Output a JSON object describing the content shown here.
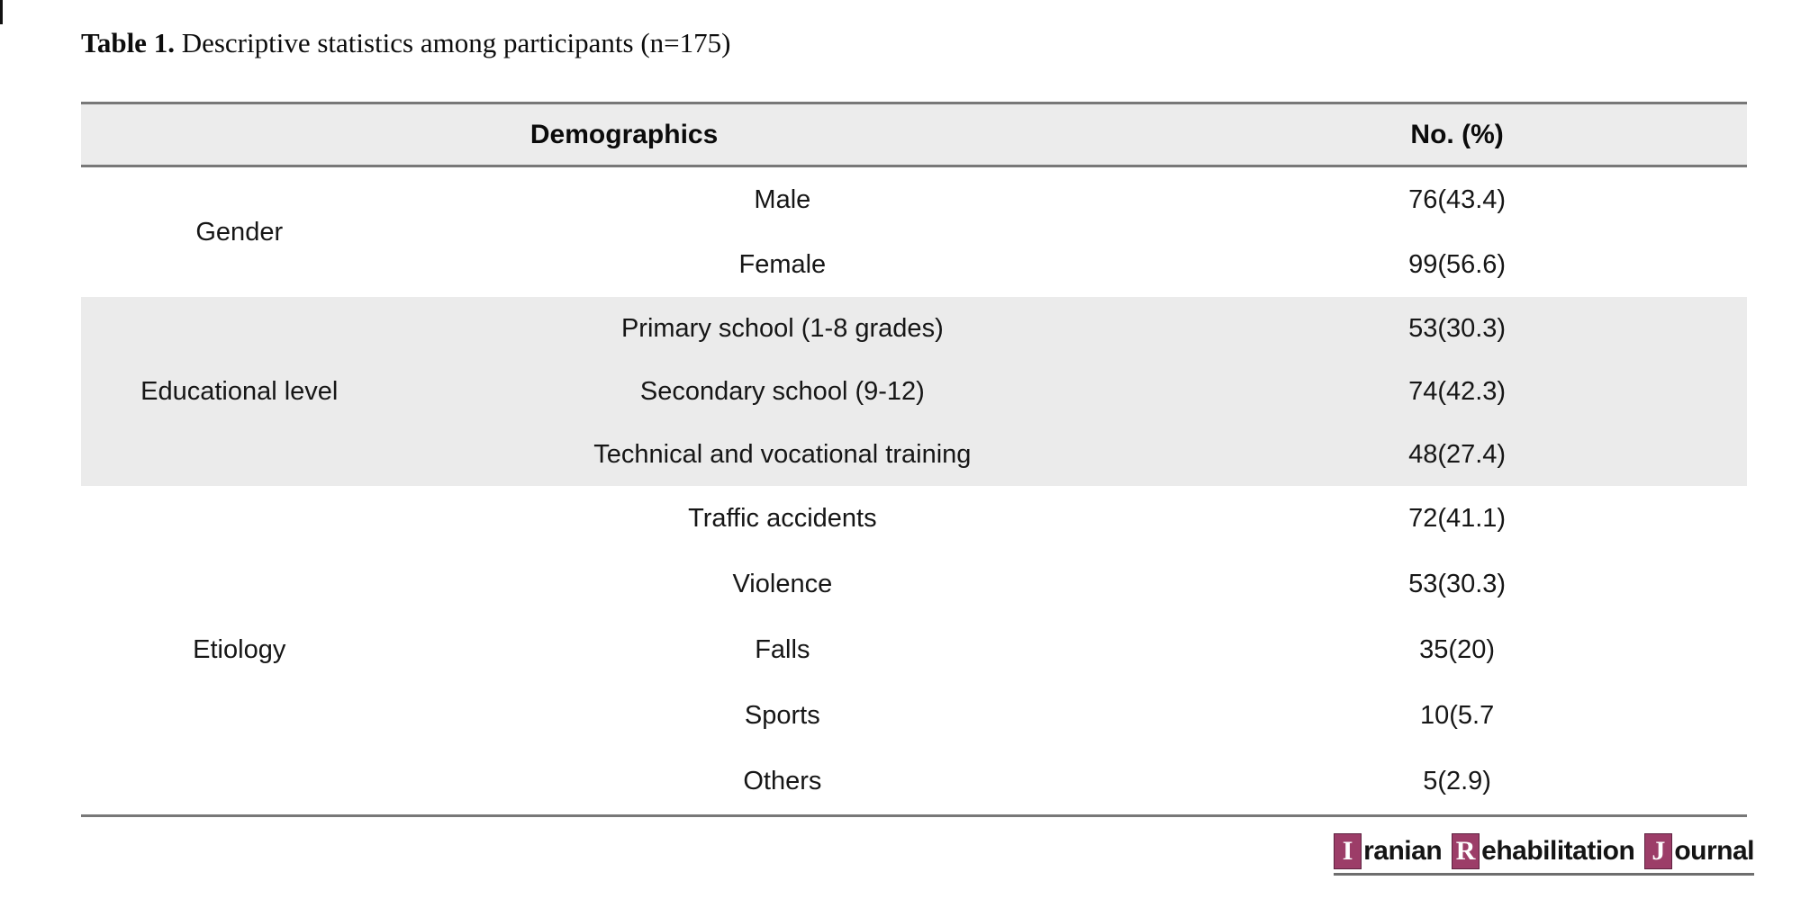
{
  "title": {
    "label": "Table 1.",
    "text": "Descriptive statistics among participants (n=175)"
  },
  "table": {
    "headers": {
      "demographics": "Demographics",
      "count": "No. (%)"
    },
    "sections": [
      {
        "category": "Gender",
        "shaded": false,
        "rows": [
          {
            "item": "Male",
            "value": "76(43.4)"
          },
          {
            "item": "Female",
            "value": "99(56.6)"
          }
        ]
      },
      {
        "category": "Educational level",
        "shaded": true,
        "rows": [
          {
            "item": "Primary school (1-8 grades)",
            "value": "53(30.3)"
          },
          {
            "item": "Secondary school (9-12)",
            "value": "74(42.3)"
          },
          {
            "item": "Technical and vocational training",
            "value": "48(27.4)"
          }
        ]
      },
      {
        "category": "Etiology",
        "shaded": false,
        "rows": [
          {
            "item": "Traffic accidents",
            "value": "72(41.1)"
          },
          {
            "item": "Violence",
            "value": "53(30.3)"
          },
          {
            "item": "Falls",
            "value": "35(20)"
          },
          {
            "item": "Sports",
            "value": "10(5.7"
          },
          {
            "item": "Others",
            "value": "5(2.9)"
          }
        ]
      }
    ]
  },
  "footer": {
    "logo": {
      "words": [
        {
          "initial": "I",
          "rest": "ranian"
        },
        {
          "initial": "R",
          "rest": "ehabilitation"
        },
        {
          "initial": "J",
          "rest": "ournal"
        }
      ]
    }
  },
  "colors": {
    "accent": "#9C3D68",
    "header_bg": "#ECECEC",
    "shaded_row_bg": "#EBEBEB",
    "rule": "#787878"
  }
}
